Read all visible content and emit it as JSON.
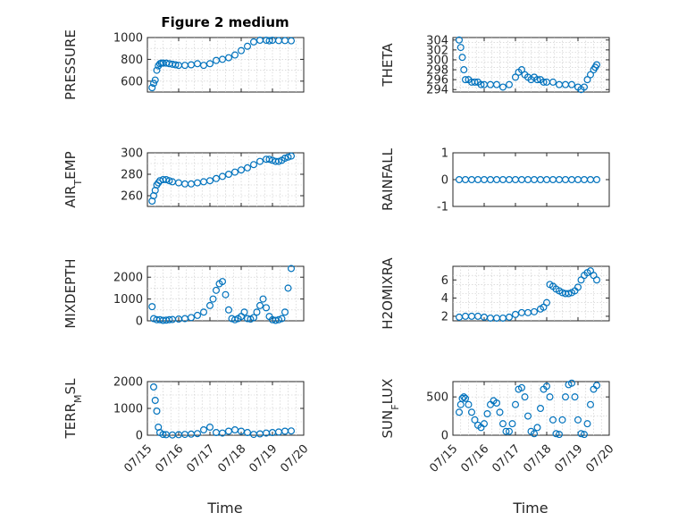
{
  "figure": {
    "title": "Figure 2 medium",
    "marker_color": "#0072BD",
    "xtick_labels": [
      "07/15",
      "07/16",
      "07/17",
      "07/18",
      "07/19",
      "07/20"
    ],
    "xlabel": "Time"
  },
  "chart_data": [
    {
      "type": "scatter",
      "name": "pressure",
      "ylabel": "PRESSURE",
      "xlim": [
        0,
        5
      ],
      "ylim": [
        500,
        1000
      ],
      "yticks": [
        600,
        800,
        1000
      ],
      "grid": true,
      "x": [
        0.15,
        0.2,
        0.25,
        0.3,
        0.35,
        0.4,
        0.45,
        0.5,
        0.6,
        0.7,
        0.8,
        0.9,
        1.0,
        1.2,
        1.4,
        1.6,
        1.8,
        2.0,
        2.2,
        2.4,
        2.6,
        2.8,
        3.0,
        3.2,
        3.4,
        3.6,
        3.8,
        3.9,
        4.0,
        4.2,
        4.4,
        4.6
      ],
      "y": [
        540,
        580,
        610,
        700,
        740,
        760,
        765,
        765,
        765,
        760,
        755,
        750,
        745,
        745,
        750,
        760,
        745,
        760,
        790,
        800,
        815,
        840,
        880,
        920,
        960,
        975,
        975,
        970,
        975,
        972,
        972,
        970
      ]
    },
    {
      "type": "scatter",
      "name": "theta",
      "ylabel": "THETA",
      "xlim": [
        0,
        5
      ],
      "ylim": [
        293.5,
        304.5
      ],
      "yticks": [
        294,
        296,
        298,
        300,
        302,
        304
      ],
      "grid": true,
      "x": [
        0.2,
        0.25,
        0.3,
        0.35,
        0.4,
        0.5,
        0.6,
        0.7,
        0.8,
        0.9,
        1.0,
        1.2,
        1.4,
        1.6,
        1.8,
        2.0,
        2.1,
        2.2,
        2.3,
        2.4,
        2.5,
        2.6,
        2.7,
        2.8,
        2.9,
        3.0,
        3.2,
        3.4,
        3.6,
        3.8,
        4.0,
        4.1,
        4.2,
        4.3,
        4.4,
        4.5,
        4.55,
        4.6
      ],
      "y": [
        304,
        302.5,
        300.5,
        298,
        296,
        296,
        295.5,
        295.5,
        295.5,
        295,
        295,
        295,
        295,
        294.5,
        295,
        296.5,
        297.5,
        298,
        297,
        296.5,
        296,
        296.5,
        296,
        296,
        295.5,
        295.5,
        295.5,
        295,
        295,
        295,
        294.5,
        294,
        294.5,
        296,
        297,
        298,
        298.5,
        299
      ]
    },
    {
      "type": "scatter",
      "name": "air_temp",
      "ylabel": "AIR_TEMP",
      "xlim": [
        0,
        5
      ],
      "ylim": [
        250,
        300
      ],
      "yticks": [
        260,
        280,
        300
      ],
      "grid": true,
      "x": [
        0.15,
        0.2,
        0.25,
        0.3,
        0.35,
        0.4,
        0.5,
        0.6,
        0.7,
        0.8,
        1.0,
        1.2,
        1.4,
        1.6,
        1.8,
        2.0,
        2.2,
        2.4,
        2.6,
        2.8,
        3.0,
        3.2,
        3.4,
        3.6,
        3.8,
        3.9,
        4.0,
        4.1,
        4.2,
        4.3,
        4.4,
        4.5,
        4.6
      ],
      "y": [
        255,
        260,
        265,
        270,
        272,
        274,
        275,
        275,
        274,
        273,
        272,
        271,
        271,
        272,
        273,
        274,
        276,
        278,
        280,
        282,
        284,
        286,
        289,
        292,
        294,
        294,
        293,
        292,
        292,
        293,
        295,
        296,
        297
      ]
    },
    {
      "type": "scatter",
      "name": "rainfall",
      "ylabel": "RAINFALL",
      "xlim": [
        0,
        5
      ],
      "ylim": [
        -1,
        1
      ],
      "yticks": [
        -1,
        0,
        1
      ],
      "grid": false,
      "x": [
        0.2,
        0.4,
        0.6,
        0.8,
        1.0,
        1.2,
        1.4,
        1.6,
        1.8,
        2.0,
        2.2,
        2.4,
        2.6,
        2.8,
        3.0,
        3.2,
        3.4,
        3.6,
        3.8,
        4.0,
        4.2,
        4.4,
        4.6
      ],
      "y": [
        0,
        0,
        0,
        0,
        0,
        0,
        0,
        0,
        0,
        0,
        0,
        0,
        0,
        0,
        0,
        0,
        0,
        0,
        0,
        0,
        0,
        0,
        0
      ]
    },
    {
      "type": "scatter",
      "name": "mixdepth",
      "ylabel": "MIXDEPTH",
      "xlim": [
        0,
        5
      ],
      "ylim": [
        0,
        2500
      ],
      "yticks": [
        0,
        1000,
        2000
      ],
      "grid": true,
      "x": [
        0.15,
        0.2,
        0.3,
        0.4,
        0.5,
        0.6,
        0.7,
        0.8,
        1.0,
        1.2,
        1.4,
        1.6,
        1.8,
        2.0,
        2.1,
        2.2,
        2.3,
        2.4,
        2.5,
        2.6,
        2.7,
        2.8,
        2.9,
        3.0,
        3.1,
        3.2,
        3.3,
        3.4,
        3.5,
        3.6,
        3.7,
        3.8,
        3.9,
        4.0,
        4.1,
        4.2,
        4.3,
        4.4,
        4.5,
        4.6
      ],
      "y": [
        650,
        100,
        50,
        50,
        20,
        30,
        50,
        60,
        80,
        100,
        150,
        250,
        400,
        700,
        1000,
        1400,
        1700,
        1800,
        1200,
        500,
        100,
        50,
        100,
        200,
        400,
        100,
        80,
        150,
        400,
        700,
        1000,
        600,
        200,
        50,
        20,
        50,
        100,
        400,
        1500,
        2400
      ]
    },
    {
      "type": "scatter",
      "name": "h2omixra",
      "ylabel": "H2OMIXRA",
      "xlim": [
        0,
        5
      ],
      "ylim": [
        1.5,
        7.5
      ],
      "yticks": [
        2,
        4,
        6
      ],
      "grid": true,
      "x": [
        0.2,
        0.4,
        0.6,
        0.8,
        1.0,
        1.2,
        1.4,
        1.6,
        1.8,
        2.0,
        2.2,
        2.4,
        2.6,
        2.8,
        2.9,
        3.0,
        3.1,
        3.2,
        3.3,
        3.4,
        3.5,
        3.6,
        3.7,
        3.8,
        3.9,
        4.0,
        4.1,
        4.2,
        4.3,
        4.4,
        4.5,
        4.6
      ],
      "y": [
        1.9,
        2.0,
        2.0,
        2.0,
        1.9,
        1.8,
        1.8,
        1.8,
        1.9,
        2.2,
        2.4,
        2.4,
        2.5,
        2.8,
        3.0,
        3.5,
        5.5,
        5.3,
        5.0,
        4.8,
        4.6,
        4.5,
        4.5,
        4.6,
        4.8,
        5.2,
        6.0,
        6.5,
        6.8,
        7.0,
        6.5,
        6.0
      ]
    },
    {
      "type": "scatter",
      "name": "terr_msl",
      "ylabel": "TERR_MSL",
      "xlim": [
        0,
        5
      ],
      "ylim": [
        0,
        2000
      ],
      "yticks": [
        0,
        1000,
        2000
      ],
      "grid": true,
      "x": [
        0.2,
        0.25,
        0.3,
        0.35,
        0.4,
        0.5,
        0.6,
        0.8,
        1.0,
        1.2,
        1.4,
        1.6,
        1.8,
        2.0,
        2.2,
        2.4,
        2.6,
        2.8,
        3.0,
        3.2,
        3.4,
        3.6,
        3.8,
        4.0,
        4.2,
        4.4,
        4.6
      ],
      "y": [
        1800,
        1300,
        900,
        300,
        100,
        30,
        20,
        10,
        20,
        30,
        40,
        60,
        200,
        300,
        100,
        80,
        150,
        200,
        150,
        100,
        30,
        50,
        80,
        100,
        120,
        150,
        160
      ]
    },
    {
      "type": "scatter",
      "name": "sun_flux",
      "ylabel": "SUN_FLUX",
      "xlim": [
        0,
        5
      ],
      "ylim": [
        0,
        700
      ],
      "yticks": [
        0,
        500
      ],
      "grid": true,
      "x": [
        0.2,
        0.25,
        0.3,
        0.35,
        0.4,
        0.5,
        0.6,
        0.7,
        0.8,
        0.9,
        1.0,
        1.1,
        1.2,
        1.3,
        1.4,
        1.5,
        1.6,
        1.7,
        1.8,
        1.9,
        2.0,
        2.1,
        2.2,
        2.3,
        2.4,
        2.5,
        2.6,
        2.7,
        2.8,
        2.9,
        3.0,
        3.1,
        3.2,
        3.3,
        3.4,
        3.5,
        3.6,
        3.7,
        3.8,
        3.9,
        4.0,
        4.1,
        4.2,
        4.3,
        4.4,
        4.5,
        4.6
      ],
      "y": [
        300,
        400,
        480,
        500,
        480,
        400,
        300,
        200,
        130,
        100,
        150,
        280,
        400,
        450,
        420,
        300,
        150,
        50,
        50,
        150,
        400,
        600,
        620,
        500,
        250,
        50,
        20,
        100,
        350,
        600,
        640,
        500,
        200,
        20,
        10,
        200,
        500,
        660,
        680,
        500,
        200,
        20,
        10,
        150,
        400,
        600,
        650
      ]
    }
  ]
}
